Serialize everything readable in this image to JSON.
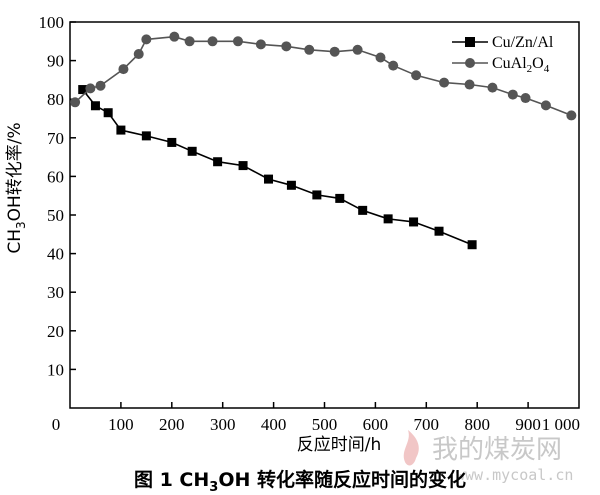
{
  "chart_data": {
    "type": "line",
    "ylabel": {
      "prefix": "CH",
      "sub": "3",
      "suffix": "OH转化率/%"
    },
    "xlabel": "反应时间/h",
    "xlim": [
      0,
      1000
    ],
    "ylim": [
      0,
      100
    ],
    "x_ticks": [
      100,
      200,
      300,
      400,
      500,
      600,
      700,
      800,
      900
    ],
    "x_tick_labels": [
      "100",
      "200",
      "300",
      "400",
      "500",
      "600",
      "700",
      "800",
      "900"
    ],
    "x_tick_last": "1 000",
    "origin_label": "0",
    "y_ticks": [
      10,
      20,
      30,
      40,
      50,
      60,
      70,
      80,
      90,
      100
    ],
    "y_tick_labels": [
      "10",
      "20",
      "30",
      "40",
      "50",
      "60",
      "70",
      "80",
      "90",
      "100"
    ],
    "grid": false,
    "legend_position": "top-right",
    "series": [
      {
        "name": "Cu/Zn/Al",
        "marker": "square",
        "color": "#000000",
        "x": [
          25,
          50,
          75,
          100,
          150,
          200,
          240,
          290,
          340,
          390,
          435,
          485,
          530,
          575,
          625,
          675,
          725,
          790
        ],
        "y": [
          82.5,
          78.3,
          76.5,
          72,
          70.5,
          68.8,
          66.5,
          63.8,
          62.8,
          59.3,
          57.7,
          55.2,
          54.3,
          51.2,
          49,
          48.2,
          45.8,
          42.3
        ]
      },
      {
        "name_parts": [
          "CuAl",
          "2",
          "O",
          "4"
        ],
        "marker": "circle",
        "color": "#555555",
        "x": [
          10,
          40,
          60,
          105,
          135,
          150,
          205,
          235,
          280,
          330,
          375,
          425,
          470,
          520,
          565,
          610,
          635,
          680,
          735,
          785,
          830,
          870,
          895,
          935,
          985
        ],
        "y": [
          79.2,
          82.8,
          83.5,
          87.8,
          91.7,
          95.5,
          96.2,
          95,
          95,
          95,
          94.2,
          93.7,
          92.8,
          92.3,
          92.8,
          90.8,
          88.7,
          86.2,
          84.3,
          83.8,
          83,
          81.2,
          80.3,
          78.4,
          75.8
        ]
      }
    ]
  },
  "caption": {
    "prefix": "图 1  CH",
    "sub": "3",
    "suffix": "OH 转化率随反应时间的变化"
  },
  "watermark": {
    "text": "我的煤炭网",
    "url": "www.mycoal.cn"
  }
}
